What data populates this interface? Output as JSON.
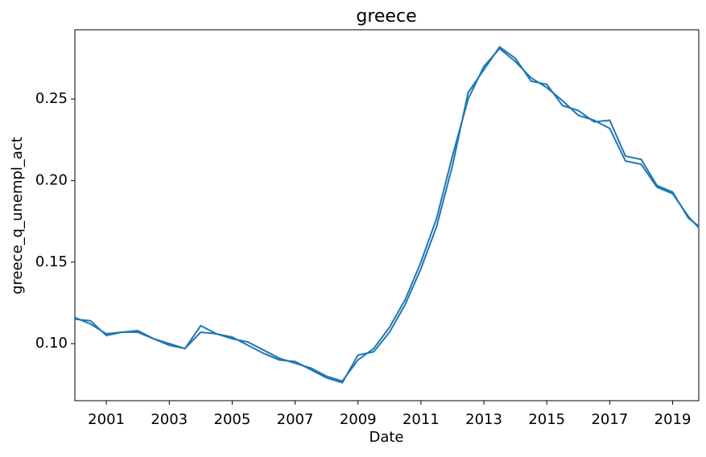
{
  "chart_data": {
    "type": "line",
    "title": "greece",
    "x_label": "Date",
    "y_label": "greece_q_unempl_act",
    "x": [
      2000.0,
      2000.5,
      2001.0,
      2001.5,
      2002.0,
      2002.5,
      2003.0,
      2003.5,
      2004.0,
      2004.5,
      2005.0,
      2005.5,
      2006.0,
      2006.5,
      2007.0,
      2007.5,
      2008.0,
      2008.5,
      2009.0,
      2009.5,
      2010.0,
      2010.5,
      2011.0,
      2011.5,
      2012.0,
      2012.5,
      2013.0,
      2013.5,
      2014.0,
      2014.5,
      2015.0,
      2015.5,
      2016.0,
      2016.5,
      2017.0,
      2017.5,
      2018.0,
      2018.5,
      2019.0,
      2019.5,
      2019.83
    ],
    "series": [
      {
        "color": "#1f77b4",
        "values": [
          0.116,
          0.112,
          0.106,
          0.107,
          0.107,
          0.103,
          0.1,
          0.097,
          0.107,
          0.106,
          0.103,
          0.101,
          0.096,
          0.091,
          0.088,
          0.085,
          0.08,
          0.077,
          0.09,
          0.097,
          0.11,
          0.127,
          0.15,
          0.177,
          0.215,
          0.25,
          0.27,
          0.281,
          0.273,
          0.263,
          0.257,
          0.249,
          0.24,
          0.237,
          0.232,
          0.212,
          0.21,
          0.196,
          0.192,
          0.178,
          0.171
        ]
      },
      {
        "color": "#1f77b4",
        "values": [
          0.115,
          0.114,
          0.105,
          0.107,
          0.108,
          0.103,
          0.099,
          0.097,
          0.111,
          0.106,
          0.104,
          0.099,
          0.094,
          0.09,
          0.089,
          0.084,
          0.079,
          0.076,
          0.093,
          0.095,
          0.107,
          0.124,
          0.146,
          0.172,
          0.209,
          0.254,
          0.268,
          0.282,
          0.275,
          0.261,
          0.259,
          0.246,
          0.243,
          0.236,
          0.237,
          0.215,
          0.213,
          0.197,
          0.193,
          0.177,
          0.172
        ]
      }
    ],
    "xlim": [
      2000.0,
      2019.83
    ],
    "ylim": [
      0.065,
      0.2925
    ],
    "xticks": [
      2001,
      2003,
      2005,
      2007,
      2009,
      2011,
      2013,
      2015,
      2017,
      2019
    ],
    "yticks": [
      {
        "value": 0.1,
        "label": "0.10"
      },
      0.15,
      {
        "value": 0.2,
        "label": "0.20"
      },
      0.25
    ]
  }
}
